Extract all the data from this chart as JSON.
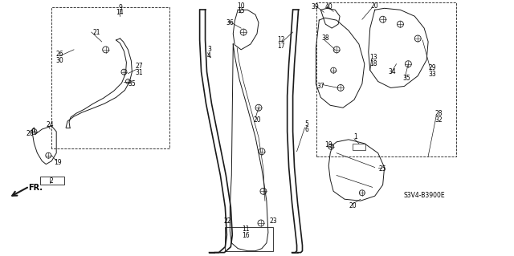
{
  "background_color": "#ffffff",
  "line_color": "#1a1a1a",
  "fig_width": 6.4,
  "fig_height": 3.19,
  "dpi": 100,
  "diagram_model": "S3V4-B3900E"
}
